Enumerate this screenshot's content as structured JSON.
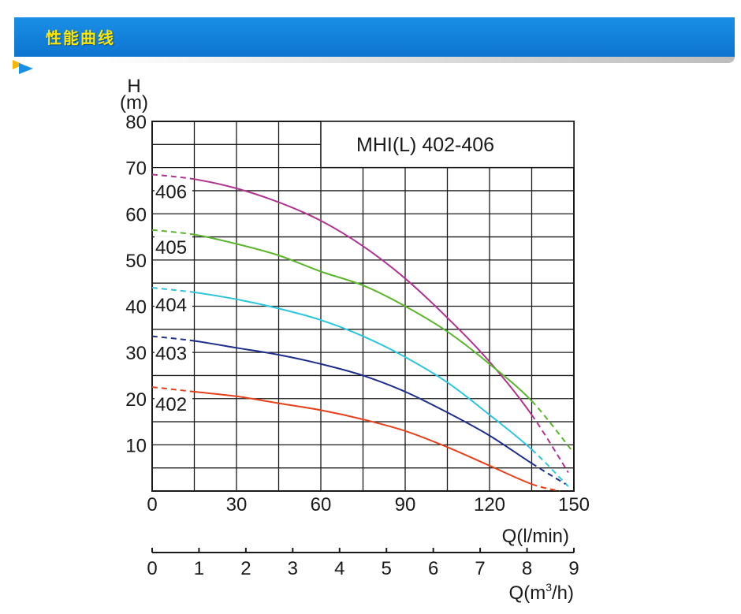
{
  "header": {
    "title": "性能曲线"
  },
  "chart_data": {
    "type": "line",
    "title": "MHI(L) 402-406",
    "y_label_top": "H",
    "y_label_unit": "(m)",
    "xlabel": "Q(l/min)",
    "xlabel2_prefix": "Q(m",
    "xlabel2_sup": "3",
    "xlabel2_suffix": "/h)",
    "xlim": [
      0,
      150
    ],
    "ylim": [
      0,
      80
    ],
    "x2lim": [
      0,
      9
    ],
    "x_ticks": [
      0,
      30,
      60,
      90,
      120,
      150
    ],
    "y_ticks": [
      10,
      20,
      30,
      40,
      50,
      60,
      70,
      80
    ],
    "x2_ticks": [
      0,
      1,
      2,
      3,
      4,
      5,
      6,
      7,
      8,
      9
    ],
    "grid": true,
    "series": [
      {
        "name": "406",
        "color": "#b0338f",
        "x": [
          0,
          15,
          30,
          45,
          60,
          75,
          90,
          105,
          120,
          135,
          148
        ],
        "y": [
          68.5,
          67.5,
          65.5,
          62.5,
          58.5,
          53,
          46,
          37.5,
          28,
          16.5,
          4
        ]
      },
      {
        "name": "405",
        "color": "#5ab52d",
        "x": [
          0,
          15,
          30,
          45,
          60,
          75,
          90,
          105,
          120,
          135,
          149
        ],
        "y": [
          56.5,
          55.5,
          53.5,
          51,
          47.5,
          44.5,
          40,
          34.5,
          27.5,
          19.5,
          9
        ]
      },
      {
        "name": "404",
        "color": "#2cc6dc",
        "x": [
          0,
          15,
          30,
          45,
          60,
          75,
          90,
          105,
          120,
          135,
          148
        ],
        "y": [
          44,
          43,
          41.5,
          39.5,
          37,
          33.5,
          29,
          23.5,
          16.5,
          9,
          1
        ]
      },
      {
        "name": "403",
        "color": "#1d2d8c",
        "x": [
          0,
          15,
          30,
          45,
          60,
          75,
          90,
          105,
          120,
          135,
          147
        ],
        "y": [
          33.5,
          32.5,
          31,
          29.5,
          27.5,
          25,
          21.5,
          17,
          12,
          6,
          1.5
        ]
      },
      {
        "name": "402",
        "color": "#e8401a",
        "x": [
          0,
          15,
          30,
          45,
          60,
          75,
          90,
          105,
          120,
          135,
          145
        ],
        "y": [
          22.5,
          21.5,
          20.5,
          19,
          17.5,
          15.5,
          13,
          9.5,
          5.5,
          1.5,
          0
        ]
      }
    ]
  }
}
